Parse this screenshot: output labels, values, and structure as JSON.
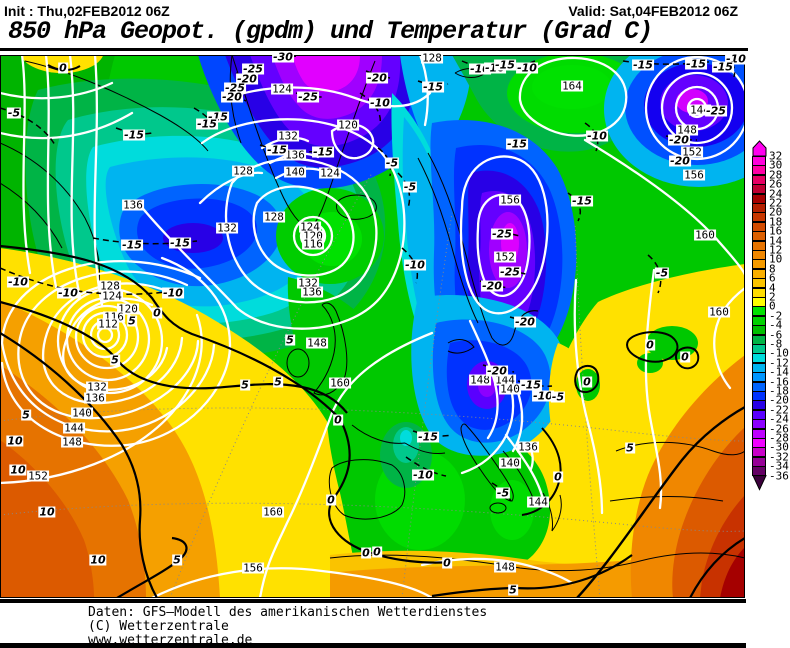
{
  "header": {
    "init": "Init : Thu,02FEB2012 06Z",
    "valid": "Valid: Sat,04FEB2012 06Z",
    "title": "850 hPa Geopot. (gpdm) und Temperatur (Grad C)"
  },
  "footer": {
    "source": "Daten: GFS—Modell des amerikanischen Wetterdienstes",
    "copyright": "(C) Wetterzentrale",
    "website": "www.wetterzentrale.de"
  },
  "colorbar": {
    "unit": "Grad C",
    "levels": [
      32,
      30,
      28,
      26,
      24,
      22,
      20,
      18,
      16,
      14,
      12,
      10,
      8,
      6,
      4,
      2,
      0,
      -2,
      -4,
      -6,
      -8,
      -10,
      -12,
      -14,
      -16,
      -18,
      -20,
      -22,
      -24,
      -26,
      -28,
      -30,
      -32,
      -34,
      -36
    ],
    "colors": [
      "#FF00DC",
      "#FF00A5",
      "#E60064",
      "#BE0032",
      "#A50000",
      "#B42000",
      "#C83700",
      "#D24B00",
      "#DC5F00",
      "#E67300",
      "#F08700",
      "#F59B00",
      "#FAAF00",
      "#FAC300",
      "#FFDC00",
      "#FFFF00",
      "#00E100",
      "#00D200",
      "#00BE00",
      "#00B446",
      "#00C88C",
      "#00DCDC",
      "#00B4F0",
      "#0096FF",
      "#0064FF",
      "#0032FF",
      "#2800E6",
      "#5A00FF",
      "#8C00FF",
      "#BE00FF",
      "#F000FF",
      "#C800C8",
      "#960096",
      "#640064"
    ],
    "arrow_top_color": "#FF00F0",
    "arrow_bottom_color": "#3C003C"
  },
  "map_labels": {
    "geopotential": [
      [
        "124",
        282,
        89
      ],
      [
        "120",
        348,
        125
      ],
      [
        "128",
        243,
        171
      ],
      [
        "132",
        288,
        136
      ],
      [
        "136",
        295,
        155
      ],
      [
        "140",
        295,
        172
      ],
      [
        "124",
        330,
        173
      ],
      [
        "136",
        133,
        205
      ],
      [
        "132",
        227,
        228
      ],
      [
        "128",
        274,
        217
      ],
      [
        "124",
        310,
        227
      ],
      [
        "120",
        313,
        236
      ],
      [
        "116",
        313,
        244
      ],
      [
        "132",
        308,
        283
      ],
      [
        "136",
        312,
        292
      ],
      [
        "128",
        432,
        58
      ],
      [
        "164",
        572,
        86
      ],
      [
        "144",
        700,
        110
      ],
      [
        "148",
        687,
        130
      ],
      [
        "152",
        692,
        152
      ],
      [
        "156",
        694,
        175
      ],
      [
        "156",
        510,
        200
      ],
      [
        "152",
        505,
        257
      ],
      [
        "160",
        705,
        235
      ],
      [
        "160",
        719,
        312
      ],
      [
        "128",
        110,
        286
      ],
      [
        "124",
        112,
        296
      ],
      [
        "120",
        128,
        309
      ],
      [
        "116",
        114,
        317
      ],
      [
        "112",
        108,
        324
      ],
      [
        "132",
        97,
        387
      ],
      [
        "136",
        95,
        398
      ],
      [
        "140",
        82,
        413
      ],
      [
        "144",
        74,
        428
      ],
      [
        "148",
        72,
        442
      ],
      [
        "152",
        38,
        476
      ],
      [
        "148",
        317,
        343
      ],
      [
        "160",
        340,
        383
      ],
      [
        "160",
        273,
        512
      ],
      [
        "156",
        253,
        568
      ],
      [
        "148",
        480,
        380
      ],
      [
        "144",
        505,
        380
      ],
      [
        "140",
        510,
        389
      ],
      [
        "136",
        528,
        447
      ],
      [
        "140",
        510,
        463
      ],
      [
        "144",
        538,
        502
      ],
      [
        "148",
        505,
        567
      ]
    ],
    "temperature": [
      [
        "-30",
        283,
        57
      ],
      [
        "-25",
        253,
        69
      ],
      [
        "-20",
        247,
        79
      ],
      [
        "-25",
        235,
        88
      ],
      [
        "-20",
        232,
        97
      ],
      [
        "-25",
        308,
        97
      ],
      [
        "-20",
        377,
        78
      ],
      [
        "-15",
        218,
        117
      ],
      [
        "-15",
        207,
        124
      ],
      [
        "-10",
        380,
        103
      ],
      [
        "-15",
        277,
        150
      ],
      [
        "-15",
        323,
        152
      ],
      [
        "-5",
        392,
        163
      ],
      [
        "-5",
        14,
        113
      ],
      [
        "-15",
        134,
        135
      ],
      [
        "-10",
        18,
        282
      ],
      [
        "-10",
        68,
        293
      ],
      [
        "-10",
        173,
        293
      ],
      [
        "-15",
        132,
        245
      ],
      [
        "-15",
        180,
        243
      ],
      [
        "-15",
        433,
        87
      ],
      [
        "-10",
        480,
        69
      ],
      [
        "-10",
        495,
        68
      ],
      [
        "-15",
        505,
        65
      ],
      [
        "-10",
        527,
        68
      ],
      [
        "-15",
        643,
        65
      ],
      [
        "-15",
        696,
        64
      ],
      [
        "-10",
        736,
        59
      ],
      [
        "-15",
        723,
        67
      ],
      [
        "-25",
        716,
        111
      ],
      [
        "-20",
        679,
        140
      ],
      [
        "-20",
        680,
        161
      ],
      [
        "-10",
        597,
        136
      ],
      [
        "-15",
        517,
        144
      ],
      [
        "-15",
        582,
        201
      ],
      [
        "-25",
        502,
        234
      ],
      [
        "-25",
        510,
        272
      ],
      [
        "-20",
        492,
        286
      ],
      [
        "-20",
        525,
        322
      ],
      [
        "-5",
        410,
        187
      ],
      [
        "-10",
        415,
        265
      ],
      [
        "-5",
        662,
        273
      ],
      [
        "-15",
        428,
        437
      ],
      [
        "-10",
        423,
        475
      ],
      [
        "-20",
        497,
        371
      ],
      [
        "-15",
        531,
        385
      ],
      [
        "-10",
        543,
        396
      ],
      [
        "-5",
        558,
        397
      ],
      [
        "-5",
        503,
        493
      ],
      [
        "0",
        558,
        477
      ],
      [
        "0",
        447,
        563
      ],
      [
        "5",
        513,
        590
      ],
      [
        "5",
        630,
        448
      ],
      [
        "0",
        587,
        382
      ],
      [
        "0",
        650,
        345
      ],
      [
        "0",
        685,
        357
      ],
      [
        "0",
        63,
        68
      ],
      [
        "5",
        26,
        415
      ],
      [
        "10",
        15,
        441
      ],
      [
        "10",
        18,
        470
      ],
      [
        "10",
        47,
        512
      ],
      [
        "10",
        98,
        560
      ],
      [
        "5",
        290,
        340
      ],
      [
        "5",
        245,
        385
      ],
      [
        "5",
        278,
        382
      ],
      [
        "0",
        338,
        420
      ],
      [
        "0",
        331,
        500
      ],
      [
        "5",
        177,
        560
      ],
      [
        "0",
        366,
        553
      ],
      [
        "0",
        377,
        552
      ],
      [
        "5",
        132,
        321
      ],
      [
        "0",
        157,
        313
      ],
      [
        "5",
        115,
        360
      ]
    ]
  }
}
